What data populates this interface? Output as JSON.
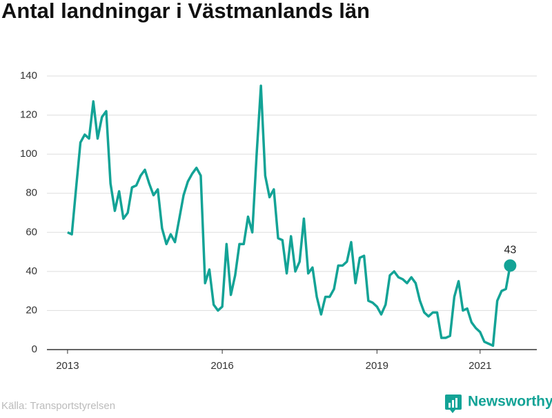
{
  "chart_data": {
    "type": "line",
    "title": "Antal landningar i Västmanlands län",
    "source": "Källa: Transportstyrelsen",
    "brand": "Newsworthy",
    "color": "#13a396",
    "grid": true,
    "xlim": [
      2012.6,
      2022.1
    ],
    "xticks": [
      2013,
      2016,
      2019,
      2021
    ],
    "ylim": [
      0,
      140
    ],
    "yticks": [
      0,
      20,
      40,
      60,
      80,
      100,
      120,
      140
    ],
    "x": [
      2013.0,
      2013.083,
      2013.167,
      2013.25,
      2013.333,
      2013.417,
      2013.5,
      2013.583,
      2013.667,
      2013.75,
      2013.833,
      2013.917,
      2014.0,
      2014.083,
      2014.167,
      2014.25,
      2014.333,
      2014.417,
      2014.5,
      2014.583,
      2014.667,
      2014.75,
      2014.833,
      2014.917,
      2015.0,
      2015.083,
      2015.167,
      2015.25,
      2015.333,
      2015.417,
      2015.5,
      2015.583,
      2015.667,
      2015.75,
      2015.833,
      2015.917,
      2016.0,
      2016.083,
      2016.167,
      2016.25,
      2016.333,
      2016.417,
      2016.5,
      2016.583,
      2016.667,
      2016.75,
      2016.833,
      2016.917,
      2017.0,
      2017.083,
      2017.167,
      2017.25,
      2017.333,
      2017.417,
      2017.5,
      2017.583,
      2017.667,
      2017.75,
      2017.833,
      2017.917,
      2018.0,
      2018.083,
      2018.167,
      2018.25,
      2018.333,
      2018.417,
      2018.5,
      2018.583,
      2018.667,
      2018.75,
      2018.833,
      2018.917,
      2019.0,
      2019.083,
      2019.167,
      2019.25,
      2019.333,
      2019.417,
      2019.5,
      2019.583,
      2019.667,
      2019.75,
      2019.833,
      2019.917,
      2020.0,
      2020.083,
      2020.167,
      2020.25,
      2020.333,
      2020.417,
      2020.5,
      2020.583,
      2020.667,
      2020.75,
      2020.833,
      2020.917,
      2021.0,
      2021.083,
      2021.167,
      2021.25,
      2021.333,
      2021.417,
      2021.5,
      2021.583
    ],
    "values": [
      60,
      59,
      83,
      106,
      110,
      108,
      127,
      108,
      119,
      122,
      85,
      71,
      81,
      67,
      70,
      83,
      84,
      89,
      92,
      85,
      79,
      82,
      62,
      54,
      59,
      55,
      67,
      79,
      86,
      90,
      93,
      89,
      34,
      41,
      23,
      20,
      22,
      54,
      28,
      38,
      54,
      54,
      68,
      60,
      100,
      135,
      89,
      78,
      82,
      57,
      56,
      39,
      58,
      40,
      45,
      67,
      39,
      42,
      27,
      18,
      27,
      27,
      31,
      43,
      43,
      45,
      55,
      34,
      47,
      48,
      25,
      24,
      22,
      18,
      23,
      38,
      40,
      37,
      36,
      34,
      37,
      34,
      25,
      19,
      17,
      19,
      19,
      6,
      6,
      7,
      27,
      35,
      20,
      21,
      14,
      11,
      9,
      4,
      3,
      2,
      25,
      30,
      31,
      43
    ]
  }
}
